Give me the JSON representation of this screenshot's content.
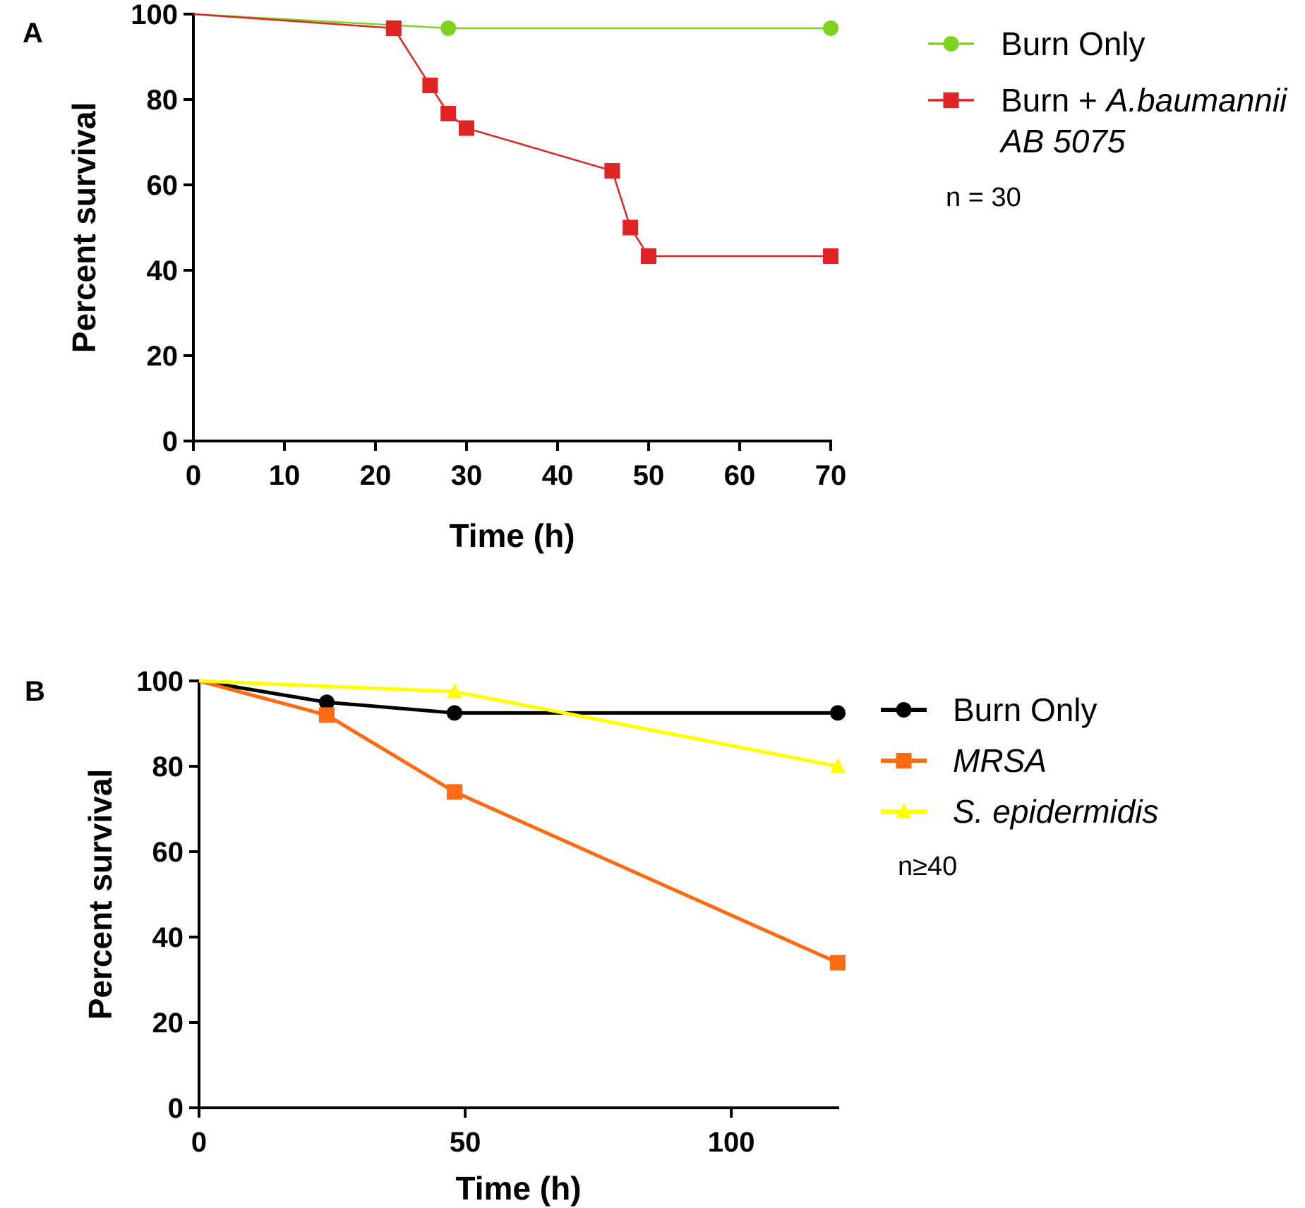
{
  "chart_data": [
    {
      "panel_label": "A",
      "type": "line",
      "style": "survival-step",
      "xlabel": "Time (h)",
      "ylabel": "Percent survival",
      "xlim": [
        0,
        70
      ],
      "ylim": [
        0,
        100
      ],
      "xticks": [
        0,
        10,
        20,
        30,
        40,
        50,
        60,
        70
      ],
      "yticks": [
        0,
        20,
        40,
        60,
        80,
        100
      ],
      "grid": false,
      "legend_position": "top-right outside",
      "note": "n = 30",
      "series": [
        {
          "name": "Burn Only",
          "name_parts": [
            {
              "text": "Burn Only",
              "italic": false
            }
          ],
          "color": "#7ed321",
          "marker": "circle",
          "x": [
            0,
            28,
            70
          ],
          "y": [
            100,
            96.7,
            96.7
          ],
          "marked": [
            false,
            true,
            true
          ]
        },
        {
          "name": "Burn + A.baumannii AB 5075",
          "name_parts": [
            {
              "text": "Burn + ",
              "italic": false
            },
            {
              "text": "A.baumannii",
              "italic": true
            }
          ],
          "name_line2": "AB 5075",
          "color": "#e02424",
          "marker": "square",
          "x": [
            0,
            22,
            26,
            28,
            30,
            46,
            48,
            50,
            70
          ],
          "y": [
            100,
            96.7,
            83.3,
            76.7,
            73.3,
            63.3,
            50.0,
            43.3,
            43.3
          ],
          "marked": [
            false,
            true,
            true,
            true,
            true,
            true,
            true,
            true,
            true
          ]
        }
      ]
    },
    {
      "panel_label": "B",
      "type": "line",
      "style": "survival-linear",
      "xlabel": "Time (h)",
      "ylabel": "Percent survival",
      "xlim": [
        0,
        120
      ],
      "ylim": [
        0,
        100
      ],
      "xticks": [
        0,
        50,
        100
      ],
      "yticks": [
        0,
        20,
        40,
        60,
        80,
        100
      ],
      "grid": false,
      "legend_position": "top-right outside",
      "note": "n≥40",
      "series": [
        {
          "name": "Burn Only",
          "name_parts": [
            {
              "text": "Burn Only",
              "italic": false
            }
          ],
          "color": "#000000",
          "marker": "circle",
          "x": [
            0,
            24,
            48,
            120
          ],
          "y": [
            100,
            95.0,
            92.5,
            92.5
          ],
          "marked": [
            false,
            true,
            true,
            true
          ]
        },
        {
          "name": "MRSA",
          "name_parts": [
            {
              "text": "MRSA",
              "italic": true
            }
          ],
          "color": "#ff6a13",
          "marker": "square",
          "x": [
            0,
            24,
            48,
            120
          ],
          "y": [
            100,
            92.0,
            74.0,
            34.0
          ],
          "marked": [
            false,
            true,
            true,
            true
          ]
        },
        {
          "name": "S. epidermidis",
          "name_parts": [
            {
              "text": "S. epidermidis",
              "italic": true
            }
          ],
          "color": "#ffff00",
          "marker": "triangle",
          "x": [
            0,
            48,
            120
          ],
          "y": [
            100,
            97.5,
            80.0
          ],
          "marked": [
            false,
            true,
            true
          ]
        }
      ]
    }
  ]
}
